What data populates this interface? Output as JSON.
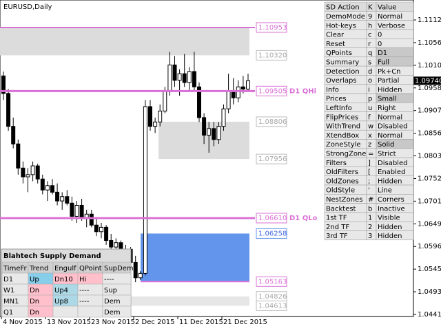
{
  "window": {
    "title": "EURUSD,Daily"
  },
  "price_axis": {
    "ticks": [
      "1.11125",
      "1.10560",
      "1.10105",
      "1.09580",
      "1.09075",
      "1.08560",
      "1.08035",
      "1.07520",
      "1.07010",
      "1.06490",
      "1.05965",
      "1.05450",
      "1.04935",
      "1.04415"
    ],
    "current": "1.09740"
  },
  "date_axis": {
    "labels": [
      "4 Nov 2015",
      "13 Nov 2015",
      "23 Nov 2015",
      "2 Dec 2015",
      "11 Dec 2015",
      "21 Dec 2015"
    ]
  },
  "candles": [
    [
      1.0985,
      1.0995,
      1.093,
      1.0945
    ],
    [
      1.0945,
      1.0955,
      1.086,
      1.087
    ],
    [
      1.087,
      1.089,
      1.082,
      1.083
    ],
    [
      1.083,
      1.084,
      1.076,
      1.0775
    ],
    [
      1.0775,
      1.079,
      1.074,
      1.0755
    ],
    [
      1.0755,
      1.0775,
      1.072,
      1.076
    ],
    [
      1.076,
      1.079,
      1.0745,
      1.078
    ],
    [
      1.078,
      1.0785,
      1.074,
      1.075
    ],
    [
      1.075,
      1.076,
      1.0715,
      1.0725
    ],
    [
      1.0725,
      1.0745,
      1.07,
      1.0735
    ],
    [
      1.0735,
      1.075,
      1.0715,
      1.072
    ],
    [
      1.072,
      1.074,
      1.069,
      1.07
    ],
    [
      1.07,
      1.072,
      1.068,
      1.071
    ],
    [
      1.071,
      1.0725,
      1.069,
      1.0695
    ],
    [
      1.0695,
      1.071,
      1.0655,
      1.0665
    ],
    [
      1.0665,
      1.07,
      1.065,
      1.069
    ],
    [
      1.069,
      1.0705,
      1.0655,
      1.066
    ],
    [
      1.066,
      1.068,
      1.064,
      1.067
    ],
    [
      1.067,
      1.068,
      1.064,
      1.0645
    ],
    [
      1.0645,
      1.066,
      1.062,
      1.063
    ],
    [
      1.063,
      1.065,
      1.0615,
      1.064
    ],
    [
      1.064,
      1.0645,
      1.06,
      1.061
    ],
    [
      1.061,
      1.0625,
      1.0585,
      1.0595
    ],
    [
      1.0595,
      1.0615,
      1.058,
      1.0605
    ],
    [
      1.0605,
      1.061,
      1.057,
      1.058
    ],
    [
      1.058,
      1.06,
      1.056,
      1.059
    ],
    [
      1.059,
      1.0595,
      1.0545,
      1.056
    ],
    [
      1.056,
      1.0575,
      1.0515,
      1.0525
    ],
    [
      1.0525,
      1.054,
      1.052,
      1.0535
    ],
    [
      1.0535,
      1.093,
      1.053,
      1.0915
    ],
    [
      1.0915,
      1.093,
      1.086,
      1.087
    ],
    [
      1.087,
      1.089,
      1.0855,
      1.088
    ],
    [
      1.088,
      1.092,
      1.087,
      1.0905
    ],
    [
      1.0905,
      1.096,
      1.09,
      1.095
    ],
    [
      1.095,
      1.104,
      1.094,
      1.101
    ],
    [
      1.101,
      1.103,
      1.096,
      1.0975
    ],
    [
      1.0975,
      1.1,
      1.094,
      1.099
    ],
    [
      1.099,
      1.1035,
      1.096,
      1.097
    ],
    [
      1.097,
      1.1005,
      1.095,
      1.0995
    ],
    [
      1.0995,
      1.104,
      1.095,
      1.096
    ],
    [
      1.096,
      1.097,
      1.088,
      1.089
    ],
    [
      1.089,
      1.09,
      1.083,
      1.085
    ],
    [
      1.085,
      1.088,
      1.081,
      1.0865
    ],
    [
      1.0865,
      1.088,
      1.0825,
      1.084
    ],
    [
      1.084,
      1.088,
      1.083,
      1.087
    ],
    [
      1.087,
      1.092,
      1.086,
      1.091
    ],
    [
      1.091,
      1.099,
      1.09,
      1.095
    ],
    [
      1.095,
      1.098,
      1.092,
      1.0935
    ],
    [
      1.0935,
      1.0975,
      1.0925,
      1.096
    ],
    [
      1.096,
      1.0985,
      1.0945,
      1.0955
    ],
    [
      1.0955,
      1.099,
      1.095,
      1.0974
    ]
  ],
  "levels": [
    {
      "price": "1.10953",
      "kind": "line"
    },
    {
      "price": "1.10320",
      "kind": "grey"
    },
    {
      "price": "1.09505",
      "kind": "line",
      "tag": "D1 QHi"
    },
    {
      "price": "1.08806",
      "kind": "grey"
    },
    {
      "price": "1.07956",
      "kind": "grey"
    },
    {
      "price": "1.06610",
      "kind": "line",
      "tag": "D1 QLo"
    },
    {
      "price": "1.06258",
      "kind": "blue"
    },
    {
      "price": "1.05163",
      "kind": "line"
    },
    {
      "price": "1.04826",
      "kind": "grey"
    },
    {
      "price": "1.04613",
      "kind": "grey"
    }
  ],
  "settings": {
    "header": [
      "SD Action",
      "K",
      "Value"
    ],
    "rows": [
      [
        "DemoMode",
        "9",
        "Normal"
      ],
      [
        "Hot-keys",
        "h",
        "Verbose"
      ],
      [
        "Clear",
        "c",
        "0"
      ],
      [
        "Reset",
        "r",
        "0"
      ],
      [
        "QPoints",
        "q",
        "D1"
      ],
      [
        "Summary",
        "s",
        "Full"
      ],
      [
        "Detection",
        "d",
        "Pk+Cn"
      ],
      [
        "Overlaps",
        "o",
        "Partial"
      ],
      [
        "Info",
        "i",
        "Hidden"
      ],
      [
        "Prices",
        "p",
        "Small"
      ],
      [
        "LeftInfo",
        "u",
        "Right"
      ],
      [
        "FlipPrices",
        "f",
        "Normal"
      ],
      [
        "WithTrend",
        "w",
        "Disabled"
      ],
      [
        "XtendBox",
        "x",
        "Normal"
      ],
      [
        "ZoneStyle",
        "z",
        "Solid"
      ],
      [
        "StrongZone",
        "=",
        "Strict"
      ],
      [
        "Filters",
        "]",
        "Disabled"
      ],
      [
        "OldFilters",
        "[",
        "Enabled"
      ],
      [
        "OldZones",
        ";",
        "Hidden"
      ],
      [
        "OldStyle",
        "'",
        "Line"
      ],
      [
        "NestZones",
        "#",
        "Corners"
      ],
      [
        "Backtest",
        "b",
        "Inactive"
      ],
      [
        "1st TF",
        "1",
        "Visible"
      ],
      [
        "2nd TF",
        "2",
        "Hidden"
      ],
      [
        "3rd TF",
        "3",
        "Hidden"
      ]
    ]
  },
  "summary": {
    "title": "Blahtech Supply Demand",
    "header": [
      "TimeFr",
      "Trend",
      "Engulf",
      "QPoint",
      "SupDem"
    ],
    "rows": [
      [
        "D1",
        "Up",
        "Dn10",
        "Hi",
        "----"
      ],
      [
        "W1",
        "Dn",
        "Up4",
        "----",
        "Sup"
      ],
      [
        "MN1",
        "Dn",
        "Up8",
        "----",
        "Dem"
      ],
      [
        "Q1",
        "Dn",
        "",
        "",
        "Dem"
      ]
    ]
  }
}
